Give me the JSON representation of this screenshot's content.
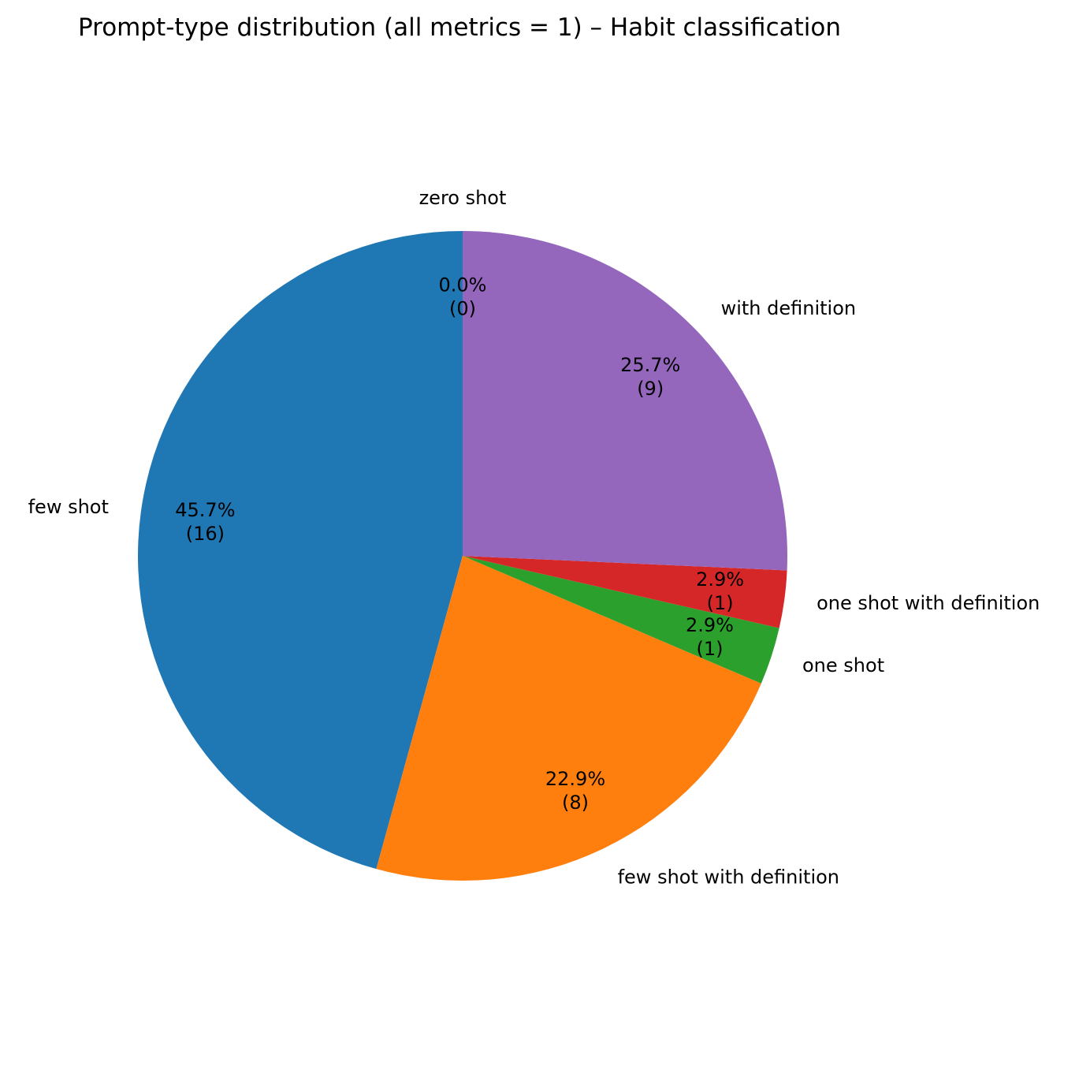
{
  "chart_data": {
    "type": "pie",
    "title": "Prompt-type distribution (all metrics = 1) – Habit classification",
    "slices": [
      {
        "label": "zero shot",
        "count": 0,
        "percent_label": "0.0%",
        "count_label": "(0)",
        "color": "#8c564b"
      },
      {
        "label": "few shot",
        "count": 16,
        "percent_label": "45.7%",
        "count_label": "(16)",
        "color": "#1f77b4"
      },
      {
        "label": "few shot with definition",
        "count": 8,
        "percent_label": "22.9%",
        "count_label": "(8)",
        "color": "#ff7f0e"
      },
      {
        "label": "one shot",
        "count": 1,
        "percent_label": "2.9%",
        "count_label": "(1)",
        "color": "#2ca02c"
      },
      {
        "label": "one shot with definition",
        "count": 1,
        "percent_label": "2.9%",
        "count_label": "(1)",
        "color": "#d62728"
      },
      {
        "label": "with definition",
        "count": 9,
        "percent_label": "25.7%",
        "count_label": "(9)",
        "color": "#9467bd"
      }
    ],
    "start_angle": "top",
    "direction": "counterclockwise",
    "legend": "none"
  }
}
